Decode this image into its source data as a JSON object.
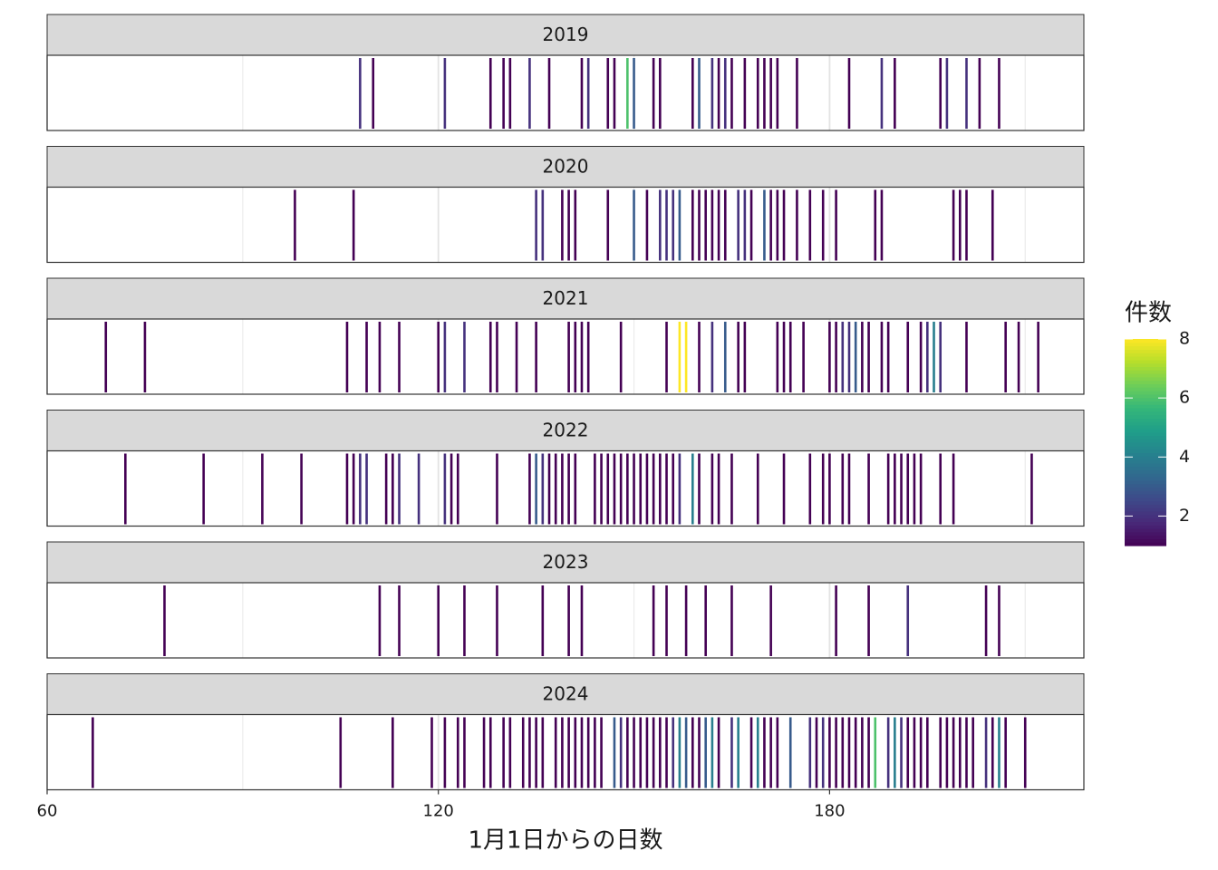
{
  "chart_data": {
    "type": "rug",
    "x_label": "1月1日からの日数",
    "xlim": [
      60,
      219
    ],
    "xticks": [
      60,
      120,
      180
    ],
    "minor_grid": [
      90,
      150,
      210
    ],
    "grid": true,
    "colormap": "viridis",
    "legend_title": "件数",
    "color_lim": [
      1,
      8
    ],
    "color_ticks": [
      2,
      4,
      6,
      8
    ],
    "legend_position": "right",
    "facets": [
      {
        "title": "2019",
        "x": [
          108,
          110,
          121,
          128,
          130,
          131,
          134,
          137,
          142,
          143,
          146,
          147,
          149,
          150,
          153,
          154,
          159,
          160,
          162,
          163,
          164,
          165,
          167,
          169,
          170,
          171,
          172,
          175,
          183,
          188,
          190,
          197,
          198,
          201,
          203,
          206
        ],
        "values": [
          2,
          1,
          2,
          1,
          1,
          1,
          2,
          1,
          1,
          2,
          1,
          1,
          6,
          3,
          1,
          1,
          1,
          3,
          2,
          1,
          2,
          1,
          1,
          1,
          1,
          1,
          1,
          1,
          1,
          2,
          1,
          1,
          2,
          2,
          1,
          1
        ]
      },
      {
        "title": "2020",
        "x": [
          98,
          107,
          135,
          136,
          139,
          140,
          141,
          146,
          150,
          152,
          154,
          155,
          156,
          157,
          159,
          160,
          161,
          162,
          163,
          164,
          166,
          167,
          168,
          170,
          171,
          172,
          173,
          175,
          177,
          179,
          181,
          187,
          188,
          199,
          200,
          201,
          205
        ],
        "values": [
          1,
          1,
          2,
          2,
          1,
          1,
          1,
          1,
          3,
          1,
          2,
          2,
          2,
          3,
          1,
          1,
          1,
          1,
          1,
          1,
          2,
          2,
          1,
          3,
          1,
          1,
          1,
          1,
          1,
          1,
          1,
          1,
          1,
          1,
          1,
          1,
          1
        ]
      },
      {
        "title": "2021",
        "x": [
          69,
          75,
          106,
          109,
          111,
          114,
          120,
          121,
          124,
          128,
          129,
          132,
          135,
          140,
          141,
          142,
          143,
          148,
          155,
          157,
          158,
          160,
          162,
          164,
          166,
          167,
          172,
          173,
          174,
          176,
          180,
          181,
          182,
          183,
          184,
          185,
          186,
          188,
          189,
          192,
          194,
          195,
          196,
          197,
          201,
          207,
          209,
          212
        ],
        "values": [
          1,
          1,
          1,
          1,
          1,
          1,
          1,
          2,
          2,
          1,
          1,
          1,
          1,
          1,
          1,
          1,
          1,
          1,
          1,
          8,
          8,
          1,
          2,
          3,
          1,
          1,
          1,
          1,
          1,
          1,
          1,
          1,
          2,
          2,
          3,
          1,
          1,
          1,
          1,
          1,
          1,
          2,
          4,
          2,
          1,
          1,
          1,
          1
        ]
      },
      {
        "title": "2022",
        "x": [
          72,
          84,
          93,
          99,
          106,
          107,
          108,
          109,
          112,
          113,
          114,
          117,
          121,
          122,
          123,
          129,
          134,
          135,
          136,
          137,
          138,
          139,
          140,
          141,
          144,
          145,
          146,
          147,
          148,
          149,
          150,
          151,
          152,
          153,
          154,
          155,
          156,
          157,
          159,
          160,
          162,
          163,
          165,
          169,
          173,
          177,
          179,
          180,
          182,
          183,
          186,
          189,
          190,
          191,
          192,
          193,
          194,
          197,
          199,
          211
        ],
        "values": [
          1,
          1,
          1,
          1,
          1,
          1,
          2,
          2,
          1,
          1,
          2,
          2,
          2,
          1,
          1,
          1,
          1,
          3,
          2,
          1,
          1,
          1,
          1,
          1,
          1,
          1,
          1,
          1,
          1,
          1,
          1,
          1,
          1,
          1,
          1,
          1,
          1,
          2,
          4,
          1,
          1,
          1,
          1,
          1,
          1,
          1,
          1,
          1,
          1,
          1,
          1,
          1,
          1,
          1,
          1,
          1,
          1,
          1,
          1,
          1
        ]
      },
      {
        "title": "2023",
        "x": [
          78,
          111,
          114,
          120,
          124,
          129,
          136,
          140,
          142,
          153,
          155,
          158,
          161,
          165,
          171,
          181,
          186,
          192,
          204,
          206
        ],
        "values": [
          1,
          1,
          1,
          1,
          1,
          1,
          1,
          1,
          1,
          1,
          1,
          1,
          1,
          1,
          1,
          1,
          1,
          2,
          1,
          1
        ]
      },
      {
        "title": "2024",
        "x": [
          67,
          105,
          113,
          119,
          121,
          123,
          124,
          127,
          128,
          130,
          131,
          133,
          134,
          135,
          136,
          138,
          139,
          140,
          141,
          142,
          143,
          144,
          145,
          147,
          148,
          149,
          150,
          151,
          152,
          153,
          154,
          155,
          156,
          157,
          158,
          159,
          160,
          161,
          162,
          163,
          165,
          166,
          168,
          169,
          170,
          171,
          172,
          174,
          177,
          178,
          179,
          180,
          181,
          182,
          183,
          184,
          185,
          186,
          187,
          189,
          190,
          191,
          192,
          193,
          194,
          195,
          197,
          198,
          199,
          200,
          201,
          202,
          204,
          205,
          206,
          207,
          210
        ],
        "values": [
          1,
          1,
          1,
          1,
          1,
          1,
          1,
          1,
          1,
          1,
          1,
          1,
          1,
          1,
          1,
          1,
          1,
          1,
          1,
          1,
          1,
          1,
          1,
          3,
          2,
          1,
          1,
          1,
          1,
          1,
          1,
          1,
          2,
          4,
          3,
          1,
          1,
          3,
          4,
          1,
          2,
          4,
          1,
          4,
          1,
          1,
          1,
          3,
          2,
          1,
          2,
          1,
          1,
          1,
          1,
          1,
          1,
          1,
          6,
          2,
          4,
          2,
          1,
          1,
          1,
          1,
          1,
          1,
          1,
          1,
          1,
          1,
          2,
          1,
          4,
          1,
          1
        ]
      }
    ]
  }
}
